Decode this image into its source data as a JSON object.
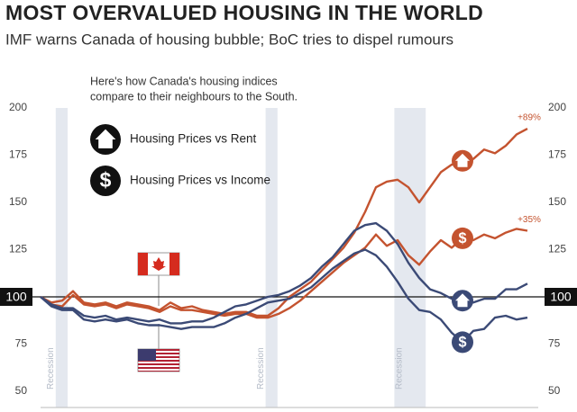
{
  "chart_data": {
    "type": "line",
    "title": "MOST OVERVALUED HOUSING IN THE WORLD",
    "subtitle": "IMF warns Canada of housing bubble; BoC tries to dispel rumours",
    "note": [
      "Here's how Canada's housing indices",
      "compare to their neighbours to the South."
    ],
    "legend": [
      {
        "label": "Housing Prices vs Rent"
      },
      {
        "label": "Housing Prices vs Income",
        "symbol": "$"
      }
    ],
    "ylim": [
      50,
      200
    ],
    "yticks": [
      50,
      75,
      100,
      125,
      150,
      175,
      200
    ],
    "baseline": 100,
    "xlim": [
      0,
      46
    ],
    "recessions": [
      {
        "label": "Recession",
        "from": 1.4,
        "to": 2.5
      },
      {
        "label": "Recession",
        "from": 20.8,
        "to": 21.9
      },
      {
        "label": "Recession",
        "from": 32.7,
        "to": 35.6
      }
    ],
    "annotations": [
      {
        "label": "+89%",
        "series": 0
      },
      {
        "label": "+35%",
        "series": 1
      }
    ],
    "series": [
      {
        "color": "#c4532f",
        "values": [
          100,
          97,
          98,
          103,
          97,
          96,
          97,
          95,
          97,
          96,
          95,
          93,
          97,
          94,
          95,
          93,
          92,
          91,
          92,
          92,
          90,
          90,
          94,
          100,
          104,
          108,
          114,
          120,
          126,
          134,
          145,
          158,
          161,
          162,
          158,
          150,
          158,
          166,
          170,
          172,
          173,
          178,
          176,
          180,
          186,
          189
        ]
      },
      {
        "color": "#c4532f",
        "values": [
          100,
          96,
          95,
          101,
          96,
          95,
          96,
          94,
          96,
          95,
          94,
          92,
          95,
          93,
          93,
          92,
          91,
          90,
          91,
          91,
          89,
          89,
          91,
          94,
          98,
          103,
          108,
          113,
          118,
          122,
          126,
          133,
          127,
          130,
          122,
          117,
          124,
          130,
          126,
          131,
          130,
          133,
          131,
          134,
          136,
          135
        ]
      },
      {
        "color": "#3b4a76",
        "values": [
          100,
          96,
          94,
          94,
          90,
          89,
          90,
          88,
          89,
          88,
          87,
          88,
          86,
          86,
          87,
          87,
          89,
          92,
          95,
          96,
          98,
          100,
          101,
          103,
          106,
          110,
          116,
          121,
          128,
          135,
          138,
          139,
          135,
          128,
          118,
          110,
          104,
          102,
          99,
          98,
          97,
          99,
          99,
          104,
          104,
          107
        ]
      },
      {
        "color": "#3b4a76",
        "values": [
          100,
          95,
          93,
          93,
          88,
          87,
          88,
          87,
          88,
          86,
          85,
          85,
          84,
          83,
          84,
          84,
          84,
          86,
          89,
          91,
          94,
          97,
          98,
          99,
          102,
          105,
          110,
          115,
          119,
          123,
          125,
          122,
          116,
          108,
          99,
          93,
          92,
          88,
          81,
          76,
          82,
          83,
          89,
          90,
          88,
          89
        ]
      }
    ]
  }
}
